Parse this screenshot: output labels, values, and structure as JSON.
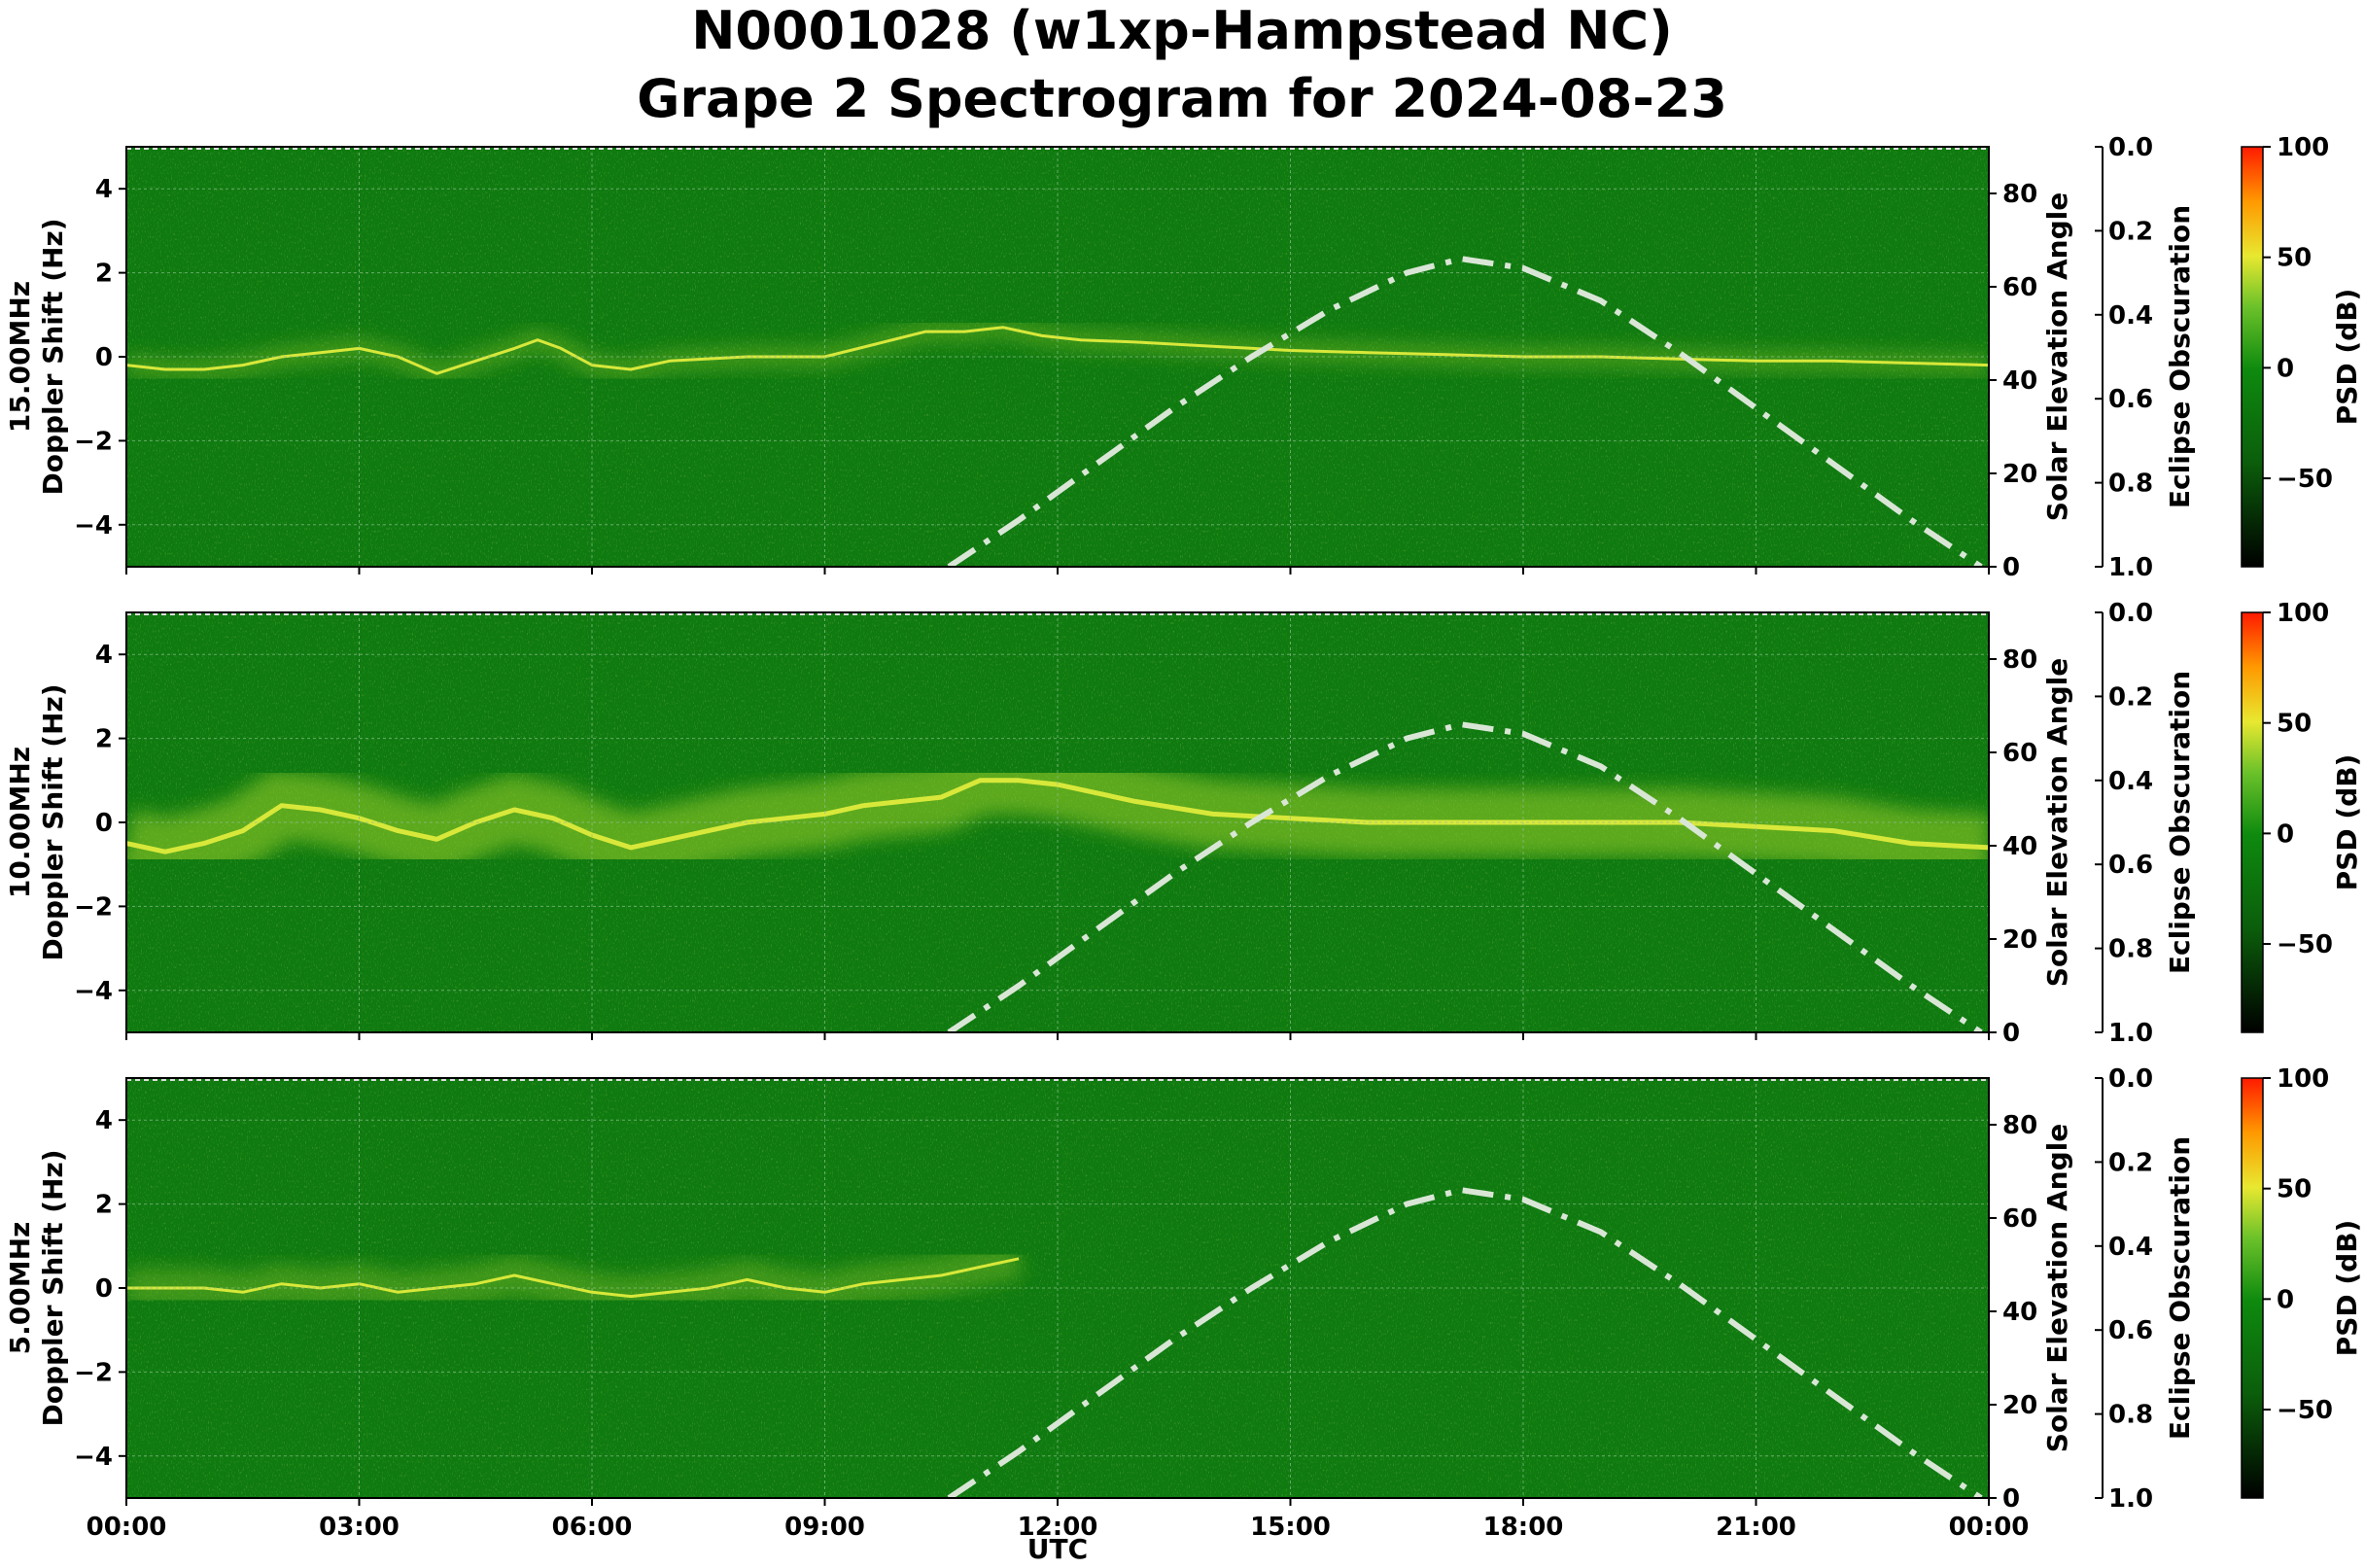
{
  "figure": {
    "title_line1": "N0001028 (w1xp-Hampstead NC)",
    "title_line2": "Grape 2 Spectrogram for 2024-08-23",
    "xlabel": "UTC"
  },
  "colors": {
    "background_green": "#0e7a10",
    "signal_yellow": "#d8e83a",
    "elevation_curve": "#d9e6d6",
    "grid": "#8fbf8f"
  },
  "chart_data": [
    {
      "type": "heatmap",
      "panel": "15.00MHz",
      "ylabel_line1": "15.00MHz",
      "ylabel_line2": "Doppler Shift (Hz)",
      "xlabel": "UTC",
      "x_ticks": [
        "00:00",
        "03:00",
        "06:00",
        "09:00",
        "12:00",
        "15:00",
        "18:00",
        "21:00",
        "00:00"
      ],
      "xlim_hours": [
        0,
        24
      ],
      "ylim": [
        -5,
        5
      ],
      "y_ticks": [
        -4,
        -2,
        0,
        2,
        4
      ],
      "grid": true,
      "right_axis": {
        "label": "Solar Elevation Angle",
        "ticks": [
          0,
          20,
          40,
          60,
          80
        ],
        "lim": [
          0,
          90
        ]
      },
      "eclipse_axis": {
        "label": "Eclipse Obscuration",
        "ticks": [
          "0.0",
          "0.2",
          "0.4",
          "0.6",
          "0.8",
          "1.0"
        ],
        "lim": [
          0,
          1
        ],
        "inverted": true
      },
      "colorbar": {
        "label": "PSD (dB)",
        "ticks": [
          100,
          50,
          0,
          -50
        ],
        "lim": [
          -90,
          100
        ]
      },
      "doppler_trace": {
        "x": [
          0,
          0.5,
          1,
          1.5,
          2,
          2.5,
          3,
          3.5,
          4,
          4.5,
          5,
          5.3,
          5.6,
          6,
          6.5,
          7,
          8,
          9,
          10.3,
          10.8,
          11.3,
          11.8,
          12.3,
          13,
          14,
          15,
          16,
          17,
          18,
          19,
          20,
          21,
          22,
          23,
          24
        ],
        "y": [
          -0.2,
          -0.3,
          -0.3,
          -0.2,
          0.0,
          0.1,
          0.2,
          0.0,
          -0.4,
          -0.1,
          0.2,
          0.4,
          0.2,
          -0.2,
          -0.3,
          -0.1,
          0.0,
          0.0,
          0.6,
          0.6,
          0.7,
          0.5,
          0.4,
          0.35,
          0.25,
          0.15,
          0.1,
          0.05,
          0.0,
          0.0,
          -0.05,
          -0.1,
          -0.1,
          -0.15,
          -0.2
        ],
        "intensity": "low"
      },
      "solar_elevation": {
        "x": [
          10.6,
          11.5,
          12.5,
          13.5,
          14.5,
          15.5,
          16.5,
          17.2,
          18,
          19,
          20,
          21,
          22,
          23,
          23.9
        ],
        "y": [
          0,
          10,
          22,
          34,
          45,
          55,
          63,
          66,
          64,
          57,
          46,
          34,
          22,
          10,
          0
        ]
      }
    },
    {
      "type": "heatmap",
      "panel": "10.00MHz",
      "ylabel_line1": "10.00MHz",
      "ylabel_line2": "Doppler Shift (Hz)",
      "xlabel": "UTC",
      "x_ticks": [
        "00:00",
        "03:00",
        "06:00",
        "09:00",
        "12:00",
        "15:00",
        "18:00",
        "21:00",
        "00:00"
      ],
      "xlim_hours": [
        0,
        24
      ],
      "ylim": [
        -5,
        5
      ],
      "y_ticks": [
        -4,
        -2,
        0,
        2,
        4
      ],
      "grid": true,
      "right_axis": {
        "label": "Solar Elevation Angle",
        "ticks": [
          0,
          20,
          40,
          60,
          80
        ],
        "lim": [
          0,
          90
        ]
      },
      "eclipse_axis": {
        "label": "Eclipse Obscuration",
        "ticks": [
          "0.0",
          "0.2",
          "0.4",
          "0.6",
          "0.8",
          "1.0"
        ],
        "lim": [
          0,
          1
        ],
        "inverted": true
      },
      "colorbar": {
        "label": "PSD (dB)",
        "ticks": [
          100,
          50,
          0,
          -50
        ],
        "lim": [
          -90,
          100
        ]
      },
      "doppler_trace": {
        "x": [
          0,
          0.5,
          1,
          1.5,
          2,
          2.5,
          3,
          3.5,
          4,
          4.5,
          5,
          5.5,
          6,
          6.5,
          7,
          7.5,
          8,
          8.5,
          9,
          9.5,
          10,
          10.5,
          11,
          11.5,
          12,
          13,
          14,
          15,
          16,
          18,
          20,
          22,
          23,
          24
        ],
        "y": [
          -0.5,
          -0.7,
          -0.5,
          -0.2,
          0.4,
          0.3,
          0.1,
          -0.2,
          -0.4,
          0.0,
          0.3,
          0.1,
          -0.3,
          -0.6,
          -0.4,
          -0.2,
          0.0,
          0.1,
          0.2,
          0.4,
          0.5,
          0.6,
          1.0,
          1.0,
          0.9,
          0.5,
          0.2,
          0.1,
          0.0,
          0.0,
          0.0,
          -0.2,
          -0.5,
          -0.6
        ],
        "intensity": "high"
      },
      "solar_elevation": {
        "x": [
          10.6,
          11.5,
          12.5,
          13.5,
          14.5,
          15.5,
          16.5,
          17.2,
          18,
          19,
          20,
          21,
          22,
          23,
          23.9
        ],
        "y": [
          0,
          10,
          22,
          34,
          45,
          55,
          63,
          66,
          64,
          57,
          46,
          34,
          22,
          10,
          0
        ]
      }
    },
    {
      "type": "heatmap",
      "panel": "5.00MHz",
      "ylabel_line1": "5.00MHz",
      "ylabel_line2": "Doppler Shift (Hz)",
      "xlabel": "UTC",
      "x_ticks": [
        "00:00",
        "03:00",
        "06:00",
        "09:00",
        "12:00",
        "15:00",
        "18:00",
        "21:00",
        "00:00"
      ],
      "xlim_hours": [
        0,
        24
      ],
      "ylim": [
        -5,
        5
      ],
      "y_ticks": [
        -4,
        -2,
        0,
        2,
        4
      ],
      "grid": true,
      "right_axis": {
        "label": "Solar Elevation Angle",
        "ticks": [
          0,
          20,
          40,
          60,
          80
        ],
        "lim": [
          0,
          90
        ]
      },
      "eclipse_axis": {
        "label": "Eclipse Obscuration",
        "ticks": [
          "0.0",
          "0.2",
          "0.4",
          "0.6",
          "0.8",
          "1.0"
        ],
        "lim": [
          0,
          1
        ],
        "inverted": true
      },
      "colorbar": {
        "label": "PSD (dB)",
        "ticks": [
          100,
          50,
          0,
          -50
        ],
        "lim": [
          -90,
          100
        ]
      },
      "doppler_trace": {
        "x": [
          0,
          1,
          1.5,
          2,
          2.5,
          3,
          3.5,
          4,
          4.5,
          5,
          5.5,
          6,
          6.5,
          7,
          7.5,
          8,
          8.5,
          9,
          9.5,
          10,
          10.5,
          11,
          11.5
        ],
        "y": [
          0.0,
          0.0,
          -0.1,
          0.1,
          0.0,
          0.1,
          -0.1,
          0.0,
          0.1,
          0.3,
          0.1,
          -0.1,
          -0.2,
          -0.1,
          0.0,
          0.2,
          0.0,
          -0.1,
          0.1,
          0.2,
          0.3,
          0.5,
          0.7
        ],
        "intensity": "medium"
      },
      "solar_elevation": {
        "x": [
          10.6,
          11.5,
          12.5,
          13.5,
          14.5,
          15.5,
          16.5,
          17.2,
          18,
          19,
          20,
          21,
          22,
          23,
          23.9
        ],
        "y": [
          0,
          10,
          22,
          34,
          45,
          55,
          63,
          66,
          64,
          57,
          46,
          34,
          22,
          10,
          0
        ]
      }
    }
  ]
}
